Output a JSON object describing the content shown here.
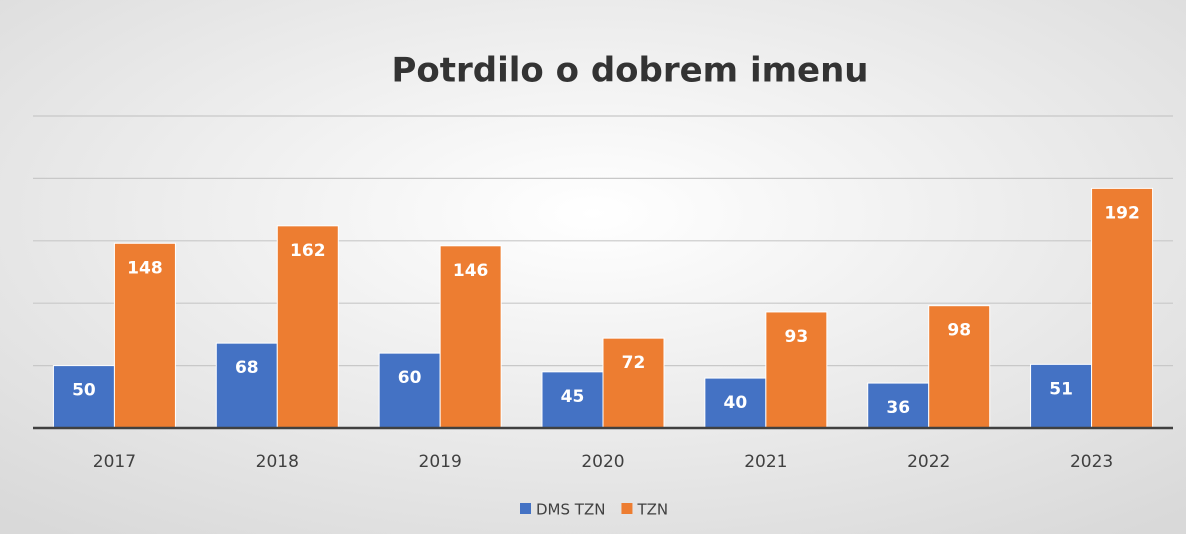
{
  "chart_data": {
    "type": "bar",
    "title": "Potrdilo o dobrem imenu",
    "categories": [
      "2017",
      "2018",
      "2019",
      "2020",
      "2021",
      "2022",
      "2023"
    ],
    "series": [
      {
        "name": "DMS TZN",
        "color": "#4472c4",
        "values": [
          50,
          68,
          60,
          45,
          40,
          36,
          51
        ]
      },
      {
        "name": "TZN",
        "color": "#ed7d31",
        "values": [
          148,
          162,
          146,
          72,
          93,
          98,
          192
        ]
      }
    ],
    "ylim": [
      0,
      250
    ],
    "yticks": [
      0,
      50,
      100,
      150,
      200,
      250
    ],
    "grid": true,
    "legend": "bottom"
  }
}
